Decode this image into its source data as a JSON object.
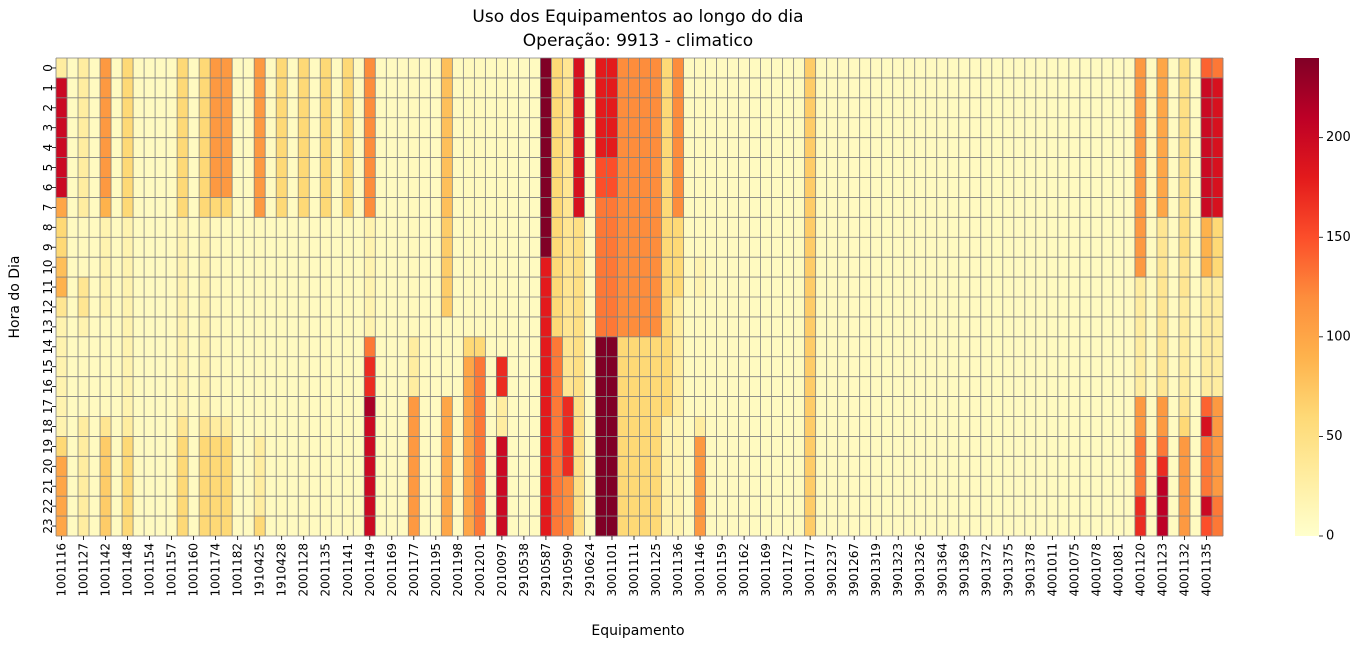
{
  "chart_data": {
    "type": "heatmap",
    "title": "Uso dos Equipamentos ao longo do dia",
    "subtitle": "Operação: 9913 - climatico",
    "xlabel": "Equipamento",
    "ylabel": "Hora do Dia",
    "colormap": "YlOrRd",
    "colorbar_range": [
      0,
      240
    ],
    "colorbar_ticks": [
      "0",
      "50",
      "100",
      "150",
      "200"
    ],
    "gridlines": true,
    "y_categories": [
      "0",
      "1",
      "2",
      "3",
      "4",
      "5",
      "6",
      "7",
      "8",
      "9",
      "10",
      "11",
      "12",
      "13",
      "14",
      "15",
      "16",
      "17",
      "18",
      "19",
      "20",
      "21",
      "22",
      "23"
    ],
    "x_tick_labels": [
      "1001116",
      "1001127",
      "1001142",
      "1001148",
      "1001154",
      "1001157",
      "1001160",
      "1001174",
      "1001182",
      "1910425",
      "1910428",
      "2001128",
      "2001135",
      "2001141",
      "2001149",
      "2001169",
      "2001177",
      "2001195",
      "2001198",
      "2001201",
      "2010097",
      "2910538",
      "2910587",
      "2910590",
      "2910624",
      "3001101",
      "3001111",
      "3001125",
      "3001136",
      "3001146",
      "3001159",
      "3001162",
      "3001169",
      "3001172",
      "3001177",
      "3901237",
      "3901267",
      "3901319",
      "3901323",
      "3901326",
      "3901364",
      "3901369",
      "3901372",
      "3901375",
      "3901378",
      "4001011",
      "4001075",
      "4001078",
      "4001081",
      "4001120",
      "4001123",
      "4001132",
      "4001135"
    ],
    "column_count": 106,
    "x_tick_every": 2,
    "column_profiles": [
      {
        "column": 0,
        "hours_0_23": [
          30,
          200,
          200,
          200,
          200,
          200,
          200,
          100,
          60,
          60,
          80,
          90,
          40,
          20,
          20,
          20,
          20,
          20,
          20,
          60,
          100,
          100,
          100,
          100
        ]
      },
      {
        "column": 2,
        "hours_0_23": [
          30,
          30,
          30,
          30,
          30,
          30,
          30,
          30,
          10,
          10,
          10,
          40,
          40,
          20,
          10,
          10,
          10,
          10,
          30,
          30,
          30,
          30,
          30,
          30
        ]
      },
      {
        "column": 4,
        "hours_0_23": [
          110,
          110,
          110,
          110,
          110,
          110,
          110,
          90,
          20,
          20,
          20,
          20,
          20,
          10,
          10,
          10,
          10,
          10,
          40,
          70,
          70,
          70,
          70,
          70
        ]
      },
      {
        "column": 6,
        "hours_0_23": [
          60,
          60,
          60,
          60,
          60,
          60,
          60,
          60,
          20,
          20,
          20,
          20,
          20,
          20,
          20,
          20,
          20,
          20,
          30,
          60,
          60,
          60,
          60,
          60
        ]
      },
      {
        "column": 11,
        "hours_0_23": [
          60,
          60,
          60,
          60,
          60,
          60,
          60,
          60,
          20,
          20,
          20,
          20,
          20,
          20,
          20,
          20,
          20,
          20,
          40,
          60,
          60,
          60,
          60,
          60
        ]
      },
      {
        "column": 13,
        "hours_0_23": [
          60,
          60,
          60,
          60,
          60,
          60,
          60,
          60,
          20,
          20,
          20,
          20,
          20,
          20,
          20,
          20,
          20,
          20,
          40,
          60,
          60,
          60,
          60,
          60
        ]
      },
      {
        "column": 14,
        "hours_0_23": [
          110,
          110,
          110,
          110,
          110,
          110,
          110,
          60,
          10,
          10,
          10,
          10,
          10,
          10,
          10,
          10,
          10,
          10,
          30,
          60,
          60,
          60,
          60,
          60
        ]
      },
      {
        "column": 15,
        "hours_0_23": [
          110,
          110,
          110,
          110,
          110,
          110,
          110,
          60,
          10,
          10,
          10,
          10,
          10,
          10,
          10,
          10,
          10,
          10,
          30,
          60,
          60,
          60,
          60,
          60
        ]
      },
      {
        "column": 18,
        "hours_0_23": [
          110,
          110,
          110,
          110,
          110,
          110,
          110,
          110,
          10,
          10,
          10,
          10,
          10,
          10,
          10,
          10,
          10,
          10,
          10,
          30,
          30,
          30,
          30,
          60
        ]
      },
      {
        "column": 20,
        "hours_0_23": [
          60,
          60,
          60,
          60,
          60,
          60,
          60,
          60,
          10,
          10,
          10,
          10,
          10,
          10,
          10,
          10,
          10,
          10,
          10,
          10,
          10,
          10,
          10,
          10
        ]
      },
      {
        "column": 22,
        "hours_0_23": [
          60,
          60,
          60,
          60,
          60,
          60,
          60,
          60,
          10,
          10,
          10,
          10,
          10,
          10,
          10,
          10,
          10,
          10,
          10,
          10,
          10,
          10,
          10,
          10
        ]
      },
      {
        "column": 24,
        "hours_0_23": [
          60,
          60,
          60,
          60,
          60,
          60,
          60,
          60,
          10,
          10,
          10,
          10,
          10,
          10,
          10,
          10,
          10,
          10,
          10,
          10,
          10,
          10,
          10,
          10
        ]
      },
      {
        "column": 26,
        "hours_0_23": [
          60,
          60,
          60,
          60,
          60,
          60,
          60,
          60,
          10,
          10,
          10,
          10,
          10,
          10,
          10,
          10,
          10,
          10,
          10,
          10,
          10,
          10,
          10,
          10
        ]
      },
      {
        "column": 28,
        "hours_0_23": [
          120,
          120,
          120,
          120,
          120,
          120,
          120,
          120,
          20,
          20,
          20,
          20,
          20,
          20,
          130,
          170,
          170,
          220,
          200,
          200,
          200,
          200,
          200,
          200
        ]
      },
      {
        "column": 32,
        "hours_0_23": [
          10,
          10,
          10,
          10,
          10,
          10,
          10,
          10,
          10,
          10,
          10,
          10,
          10,
          10,
          30,
          30,
          30,
          110,
          110,
          110,
          110,
          110,
          110,
          110
        ]
      },
      {
        "column": 35,
        "hours_0_23": [
          80,
          80,
          80,
          80,
          80,
          80,
          80,
          80,
          70,
          70,
          70,
          70,
          70,
          10,
          10,
          10,
          10,
          100,
          100,
          100,
          100,
          100,
          100,
          100
        ]
      },
      {
        "column": 37,
        "hours_0_23": [
          10,
          10,
          10,
          10,
          10,
          10,
          10,
          10,
          10,
          10,
          10,
          10,
          10,
          10,
          60,
          100,
          100,
          100,
          100,
          100,
          100,
          100,
          100,
          100
        ]
      },
      {
        "column": 38,
        "hours_0_23": [
          10,
          10,
          10,
          10,
          10,
          10,
          10,
          10,
          10,
          10,
          10,
          10,
          10,
          10,
          60,
          130,
          130,
          130,
          130,
          130,
          130,
          130,
          130,
          130
        ]
      },
      {
        "column": 40,
        "hours_0_23": [
          10,
          10,
          10,
          10,
          10,
          10,
          10,
          10,
          10,
          10,
          10,
          10,
          10,
          10,
          10,
          170,
          170,
          30,
          30,
          200,
          200,
          200,
          200,
          200
        ]
      },
      {
        "column": 44,
        "hours_0_23": [
          240,
          240,
          240,
          240,
          240,
          240,
          240,
          240,
          240,
          240,
          180,
          180,
          180,
          180,
          180,
          180,
          180,
          180,
          180,
          180,
          180,
          180,
          180,
          180
        ]
      },
      {
        "column": 45,
        "hours_0_23": [
          60,
          60,
          60,
          60,
          60,
          60,
          60,
          60,
          60,
          60,
          60,
          60,
          60,
          60,
          130,
          130,
          130,
          130,
          130,
          130,
          130,
          130,
          130,
          130
        ]
      },
      {
        "column": 46,
        "hours_0_23": [
          40,
          40,
          40,
          40,
          40,
          40,
          40,
          40,
          40,
          40,
          40,
          40,
          40,
          40,
          40,
          40,
          40,
          170,
          170,
          170,
          170,
          120,
          120,
          120
        ]
      },
      {
        "column": 47,
        "hours_0_23": [
          190,
          190,
          190,
          190,
          190,
          190,
          190,
          190,
          50,
          50,
          50,
          50,
          50,
          50,
          50,
          50,
          50,
          50,
          50,
          50,
          50,
          50,
          50,
          50
        ]
      },
      {
        "column": 49,
        "hours_0_23": [
          180,
          180,
          180,
          180,
          180,
          150,
          150,
          130,
          130,
          130,
          130,
          130,
          130,
          130,
          240,
          240,
          240,
          240,
          240,
          240,
          240,
          240,
          240,
          240
        ]
      },
      {
        "column": 50,
        "hours_0_23": [
          180,
          180,
          180,
          180,
          180,
          150,
          150,
          130,
          130,
          130,
          130,
          130,
          130,
          130,
          240,
          240,
          240,
          240,
          240,
          240,
          240,
          240,
          240,
          240
        ]
      },
      {
        "column": 51,
        "hours_0_23": [
          120,
          120,
          120,
          120,
          120,
          120,
          120,
          120,
          120,
          120,
          120,
          120,
          120,
          120,
          60,
          60,
          60,
          60,
          60,
          60,
          60,
          60,
          60,
          60
        ]
      },
      {
        "column": 52,
        "hours_0_23": [
          120,
          120,
          120,
          120,
          120,
          120,
          120,
          120,
          120,
          120,
          120,
          120,
          120,
          120,
          60,
          60,
          60,
          60,
          60,
          60,
          60,
          60,
          60,
          60
        ]
      },
      {
        "column": 53,
        "hours_0_23": [
          120,
          120,
          120,
          120,
          120,
          120,
          120,
          120,
          120,
          120,
          120,
          120,
          120,
          120,
          60,
          60,
          60,
          60,
          60,
          60,
          60,
          60,
          60,
          60
        ]
      },
      {
        "column": 54,
        "hours_0_23": [
          120,
          120,
          120,
          120,
          120,
          120,
          120,
          120,
          120,
          120,
          120,
          120,
          120,
          120,
          60,
          60,
          60,
          60,
          60,
          60,
          60,
          60,
          60,
          60
        ]
      },
      {
        "column": 55,
        "hours_0_23": [
          60,
          60,
          60,
          60,
          60,
          60,
          60,
          60,
          60,
          60,
          60,
          60,
          60,
          60,
          60,
          60,
          60,
          60,
          20,
          20,
          20,
          20,
          20,
          20
        ]
      },
      {
        "column": 56,
        "hours_0_23": [
          120,
          120,
          120,
          120,
          120,
          120,
          120,
          120,
          60,
          60,
          60,
          60,
          30,
          30,
          30,
          30,
          30,
          30,
          20,
          20,
          20,
          20,
          20,
          20
        ]
      },
      {
        "column": 58,
        "hours_0_23": [
          10,
          10,
          10,
          10,
          10,
          10,
          10,
          10,
          10,
          10,
          20,
          20,
          10,
          10,
          10,
          10,
          10,
          10,
          30,
          110,
          110,
          110,
          110,
          110
        ]
      },
      {
        "column": 68,
        "hours_0_23": [
          70,
          70,
          70,
          70,
          70,
          70,
          70,
          70,
          70,
          70,
          70,
          70,
          70,
          70,
          70,
          70,
          70,
          70,
          70,
          70,
          70,
          70,
          70,
          70
        ]
      },
      {
        "column": 98,
        "hours_0_23": [
          110,
          110,
          110,
          110,
          110,
          110,
          110,
          110,
          110,
          110,
          110,
          30,
          30,
          30,
          30,
          30,
          30,
          110,
          110,
          130,
          130,
          130,
          170,
          170
        ]
      },
      {
        "column": 100,
        "hours_0_23": [
          100,
          100,
          100,
          100,
          100,
          100,
          100,
          100,
          40,
          40,
          40,
          40,
          40,
          40,
          40,
          40,
          40,
          110,
          110,
          130,
          170,
          210,
          210,
          210
        ]
      },
      {
        "column": 102,
        "hours_0_23": [
          50,
          50,
          50,
          50,
          50,
          50,
          50,
          50,
          50,
          50,
          40,
          40,
          30,
          30,
          30,
          30,
          30,
          40,
          60,
          110,
          110,
          110,
          110,
          110
        ]
      },
      {
        "column": 104,
        "hours_0_23": [
          140,
          200,
          200,
          200,
          200,
          200,
          200,
          200,
          90,
          90,
          90,
          30,
          30,
          30,
          30,
          30,
          30,
          140,
          190,
          130,
          130,
          130,
          200,
          150
        ]
      },
      {
        "column": 105,
        "hours_0_23": [
          130,
          190,
          190,
          190,
          190,
          190,
          190,
          190,
          60,
          60,
          60,
          30,
          30,
          30,
          30,
          30,
          30,
          110,
          110,
          110,
          110,
          110,
          130,
          130
        ]
      }
    ],
    "default_cell_value": 8
  }
}
